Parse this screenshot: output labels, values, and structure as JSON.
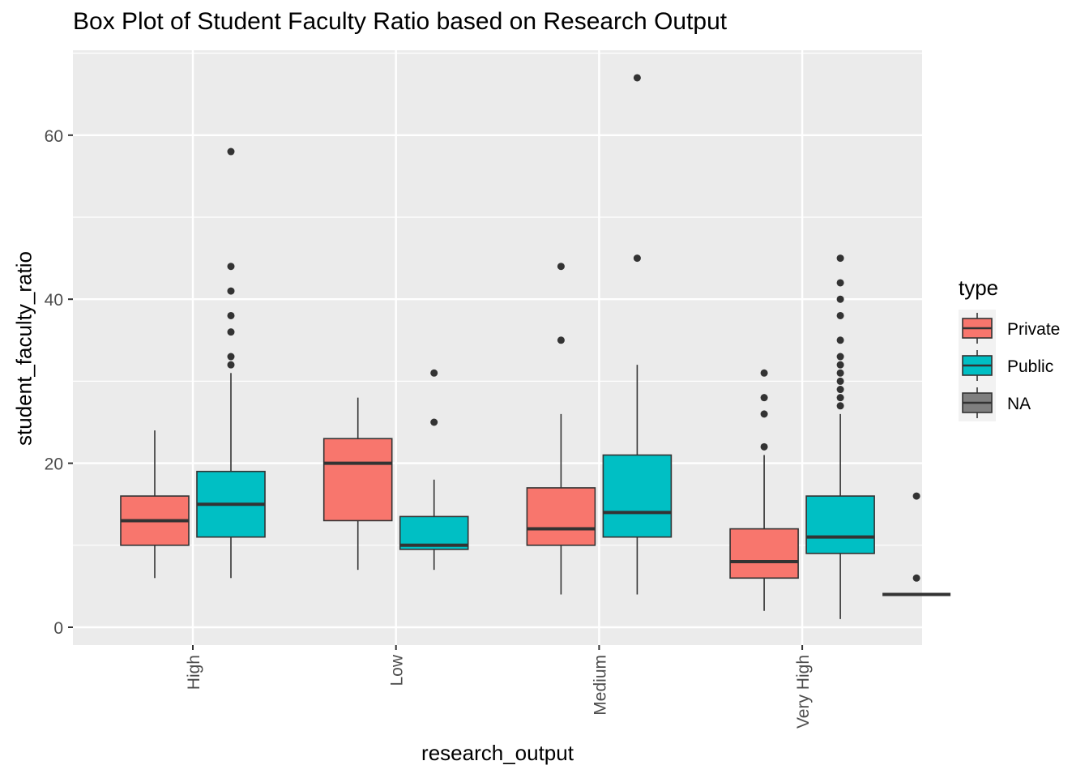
{
  "chart_data": {
    "type": "box",
    "title": "Box Plot of Student Faculty Ratio based on Research Output",
    "xlabel": "research_output",
    "ylabel": "student_faculty_ratio",
    "ylim": [
      -2.2,
      70
    ],
    "y_ticks": [
      0,
      20,
      40,
      60
    ],
    "categories": [
      "High",
      "Low",
      "Medium",
      "Very High"
    ],
    "legend": {
      "title": "type",
      "position": "right",
      "entries": [
        {
          "name": "Private",
          "color": "#F8766D"
        },
        {
          "name": "Public",
          "color": "#00BFC4"
        },
        {
          "name": "NA",
          "color": "#7F7F7F"
        }
      ]
    },
    "grid": true,
    "background": "#EBEBEB",
    "series": [
      {
        "name": "Private",
        "color": "#F8766D",
        "boxes": [
          {
            "category": "High",
            "min": 6,
            "q1": 10,
            "median": 13,
            "q3": 16,
            "max": 24,
            "outliers": []
          },
          {
            "category": "Low",
            "min": 7,
            "q1": 13,
            "median": 20,
            "q3": 23,
            "max": 28,
            "outliers": []
          },
          {
            "category": "Medium",
            "min": 4,
            "q1": 10,
            "median": 12,
            "q3": 17,
            "max": 26,
            "outliers": [
              35,
              44
            ]
          },
          {
            "category": "Very High",
            "min": 2,
            "q1": 6,
            "median": 8,
            "q3": 12,
            "max": 21,
            "outliers": [
              22,
              26,
              28,
              31
            ]
          }
        ]
      },
      {
        "name": "Public",
        "color": "#00BFC4",
        "boxes": [
          {
            "category": "High",
            "min": 6,
            "q1": 11,
            "median": 15,
            "q3": 19,
            "max": 31,
            "outliers": [
              32,
              33,
              36,
              38,
              41,
              44,
              58
            ]
          },
          {
            "category": "Low",
            "min": 7,
            "q1": 9.5,
            "median": 10,
            "q3": 13.5,
            "max": 18,
            "outliers": [
              25,
              31
            ]
          },
          {
            "category": "Medium",
            "min": 4,
            "q1": 11,
            "median": 14,
            "q3": 21,
            "max": 32,
            "outliers": [
              45,
              67
            ]
          },
          {
            "category": "Very High",
            "min": 1,
            "q1": 9,
            "median": 11,
            "q3": 16,
            "max": 26,
            "outliers": [
              27,
              28,
              29,
              30,
              31,
              32,
              33,
              35,
              38,
              40,
              42,
              45
            ]
          }
        ]
      },
      {
        "name": "NA",
        "color": "#7F7F7F",
        "boxes": [
          {
            "category": "Very High",
            "min": 4,
            "q1": 4,
            "median": 4,
            "q3": 4,
            "max": 4,
            "outliers": [
              6,
              16
            ]
          }
        ]
      }
    ]
  }
}
